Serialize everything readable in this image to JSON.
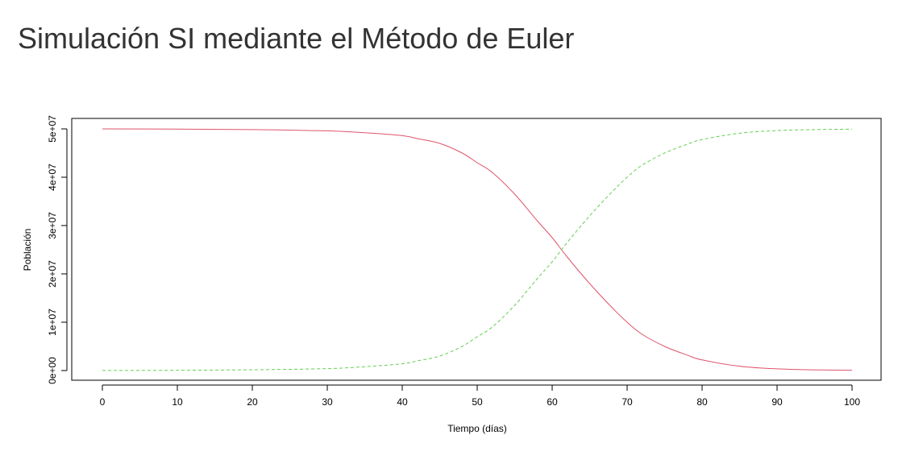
{
  "page": {
    "title": "Simulación SI mediante el Método de Euler"
  },
  "chart_data": {
    "type": "line",
    "title": "",
    "xlabel": "Tiempo (días)",
    "ylabel": "Población",
    "xlim": [
      0,
      100
    ],
    "ylim": [
      0,
      50000000
    ],
    "x_ticks": [
      0,
      10,
      20,
      30,
      40,
      50,
      60,
      70,
      80,
      90,
      100
    ],
    "x_tick_labels": [
      "0",
      "10",
      "20",
      "30",
      "40",
      "50",
      "60",
      "70",
      "80",
      "90",
      "100"
    ],
    "y_ticks": [
      0,
      10000000,
      20000000,
      30000000,
      40000000,
      50000000
    ],
    "y_tick_labels": [
      "0e+00",
      "1e+07",
      "2e+07",
      "3e+07",
      "4e+07",
      "5e+07"
    ],
    "grid": false,
    "legend": "none",
    "series": [
      {
        "color": "#DF536B",
        "line_style": "solid",
        "x": [
          0,
          10,
          20,
          30,
          35,
          40,
          42,
          45,
          48,
          50,
          52,
          55,
          58,
          60,
          62,
          65,
          68,
          70,
          72,
          75,
          78,
          80,
          85,
          90,
          95,
          100
        ],
        "y": [
          50000000,
          49950000,
          49850000,
          49600000,
          49200000,
          48600000,
          48000000,
          47000000,
          45000000,
          43000000,
          41000000,
          36500000,
          31000000,
          27500000,
          23500000,
          18000000,
          13000000,
          10000000,
          7500000,
          5000000,
          3200000,
          2200000,
          900000,
          350000,
          150000,
          60000
        ]
      },
      {
        "color": "#61D04F",
        "line_style": "dashed",
        "x": [
          0,
          10,
          20,
          30,
          35,
          40,
          42,
          45,
          48,
          50,
          52,
          55,
          58,
          60,
          62,
          65,
          68,
          70,
          72,
          75,
          78,
          80,
          85,
          90,
          95,
          100
        ],
        "y": [
          10000,
          60000,
          160000,
          400000,
          800000,
          1400000,
          2000000,
          3000000,
          5000000,
          7000000,
          9000000,
          13500000,
          19000000,
          22500000,
          26500000,
          32000000,
          37000000,
          40000000,
          42500000,
          45000000,
          46800000,
          47800000,
          49100000,
          49650000,
          49850000,
          49940000
        ]
      }
    ]
  }
}
